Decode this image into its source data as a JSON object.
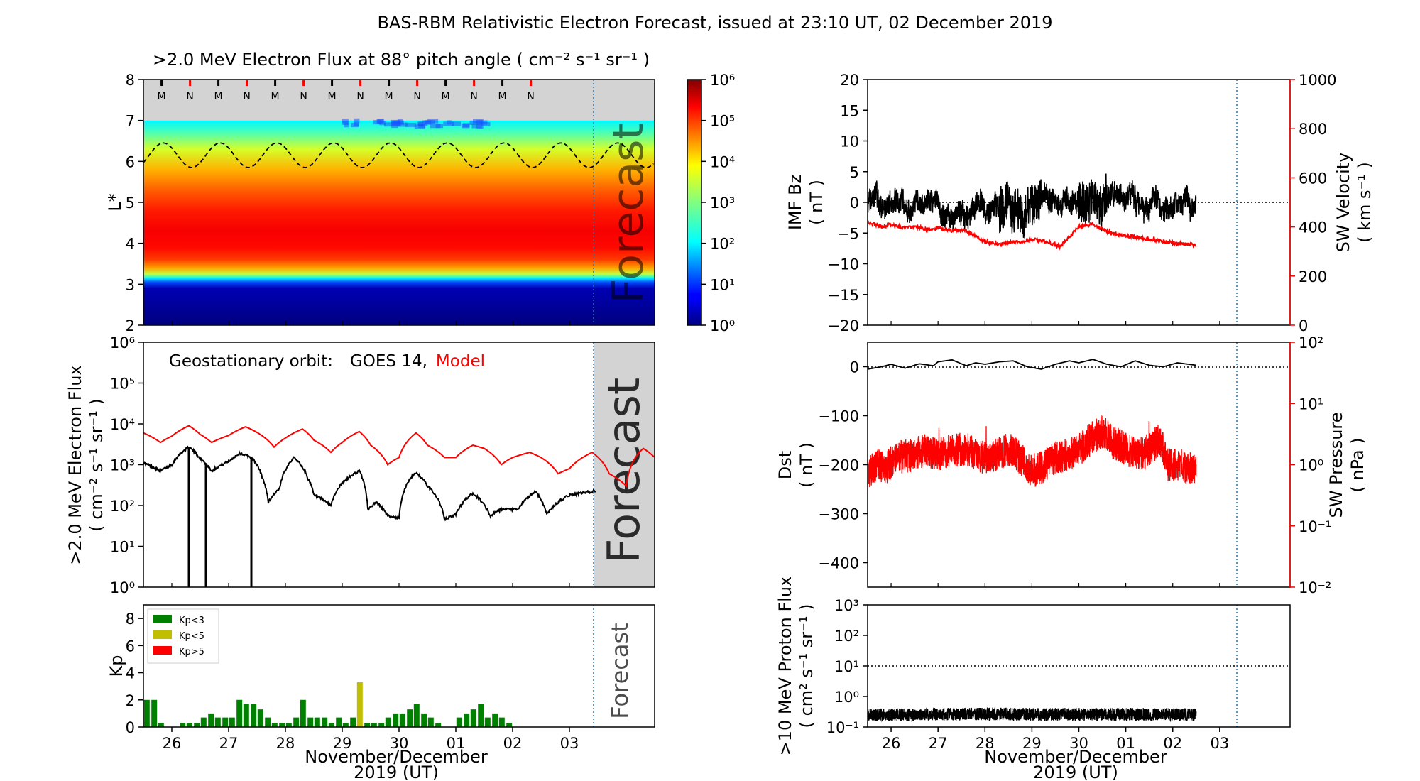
{
  "figure": {
    "title": "BAS-RBM Relativistic Electron Forecast, issued at 23:10 UT, 02 December 2019",
    "forecast_label": "Forecast",
    "xlabel_line1": "November/December",
    "xlabel_line2": "2019 (UT)"
  },
  "colors": {
    "black": "#000000",
    "red": "#ff0000",
    "green": "#008000",
    "olive": "#bfbf00",
    "forecast_line": "#1f77b4",
    "shade": "#d3d3d3"
  },
  "chart_data": [
    {
      "id": "lstar",
      "type": "heatmap",
      "title": ">2.0 MeV Electron Flux at 88° pitch angle ( cm⁻² s⁻¹ sr⁻¹ )",
      "ylabel": "L*",
      "ylim": [
        2,
        8
      ],
      "xlim": [
        25.5,
        34.5
      ],
      "yticks": [
        "2",
        "3",
        "4",
        "5",
        "6",
        "7",
        "8"
      ],
      "colorbar_ticks": [
        "10⁰",
        "10¹",
        "10²",
        "10³",
        "10⁴",
        "10⁵",
        "10⁶"
      ],
      "colorbar_range_log10": [
        0,
        6
      ],
      "forecast_start_day": 33.47,
      "mn_markers": {
        "labels": [
          "M",
          "N",
          "M",
          "N",
          "M",
          "N",
          "M",
          "N",
          "M",
          "N",
          "M",
          "N",
          "M",
          "N"
        ],
        "days": [
          25.82,
          26.32,
          26.82,
          27.32,
          27.82,
          28.32,
          28.82,
          29.32,
          29.82,
          30.32,
          30.82,
          31.32,
          31.82,
          32.32
        ]
      },
      "flux_profile_log10": {
        "L": [
          2.0,
          2.9,
          3.05,
          3.15,
          3.25,
          3.4,
          3.6,
          3.9,
          4.3,
          4.8,
          5.3,
          5.8,
          6.3,
          6.7,
          7.0
        ],
        "value": [
          0.0,
          0.3,
          1.2,
          2.2,
          3.4,
          4.3,
          4.9,
          5.2,
          5.3,
          5.1,
          4.7,
          4.2,
          3.5,
          2.7,
          2.2
        ]
      },
      "magnetopause_curve": {
        "mean_L": 6.15,
        "amplitude": 0.3,
        "period_days": 1
      }
    },
    {
      "id": "geo",
      "type": "line",
      "ylabel_line1": ">2.0 MeV Electron Flux",
      "ylabel_line2": "( cm⁻² s⁻¹ sr⁻¹ )",
      "legend_prefix": "Geostationary orbit:",
      "legend_goes": "GOES 14,",
      "legend_model": "Model",
      "yscale": "log",
      "ylim_log10": [
        0,
        6
      ],
      "yticks": [
        "10⁰",
        "10¹",
        "10²",
        "10³",
        "10⁴",
        "10⁵",
        "10⁶"
      ],
      "xlim": [
        25.5,
        34.5
      ],
      "series": [
        {
          "name": "GOES 14",
          "x": [
            25.5,
            25.8,
            26.0,
            26.3,
            26.5,
            26.7,
            27.0,
            27.2,
            27.4,
            27.6,
            27.7,
            27.9,
            28.15,
            28.4,
            28.5,
            28.8,
            29.0,
            29.3,
            29.45,
            29.6,
            29.8,
            30.0,
            30.3,
            30.5,
            30.8,
            31.0,
            31.3,
            31.6,
            31.8,
            32.1,
            32.4,
            32.6,
            33.0,
            33.5
          ],
          "y": [
            1100,
            700,
            1000,
            2700,
            1400,
            700,
            1200,
            1900,
            1500,
            450,
            120,
            260,
            1500,
            450,
            180,
            100,
            350,
            700,
            80,
            120,
            55,
            50,
            650,
            300,
            45,
            60,
            200,
            55,
            80,
            80,
            220,
            60,
            180,
            230
          ]
        },
        {
          "name": "Model",
          "x": [
            25.5,
            25.8,
            26.0,
            26.3,
            26.5,
            26.7,
            27.0,
            27.3,
            27.6,
            27.8,
            28.0,
            28.3,
            28.5,
            28.8,
            29.0,
            29.3,
            29.5,
            29.8,
            30.0,
            30.3,
            30.5,
            30.8,
            31.0,
            31.3,
            31.5,
            31.8,
            32.0,
            32.3,
            32.5,
            32.8,
            33.0,
            33.4,
            33.7,
            34.0,
            34.3,
            34.5
          ],
          "y": [
            6000,
            3500,
            5000,
            9000,
            5500,
            3500,
            5200,
            8500,
            5000,
            2700,
            4500,
            7500,
            4000,
            2000,
            3500,
            6500,
            3000,
            1000,
            1500,
            6000,
            3000,
            1500,
            1500,
            3000,
            2500,
            1000,
            1500,
            2000,
            1500,
            600,
            800,
            2000,
            600,
            300,
            2500,
            1500
          ]
        }
      ],
      "spikes": [
        26.3,
        26.6,
        27.4
      ]
    },
    {
      "id": "kp",
      "type": "bar",
      "ylabel": "Kp",
      "ylim": [
        0,
        9
      ],
      "yticks": [
        "0",
        "2",
        "4",
        "6",
        "8"
      ],
      "xlim": [
        25.5,
        34.5
      ],
      "xticks": [
        "26",
        "27",
        "28",
        "29",
        "30",
        "01",
        "02",
        "03"
      ],
      "legend": [
        {
          "label": "Kp<3",
          "color": "#008000"
        },
        {
          "label": "Kp<5",
          "color": "#bfbf00"
        },
        {
          "label": "Kp>5",
          "color": "#ff0000"
        }
      ],
      "bar_width_days": 0.1,
      "bars": [
        {
          "x": 25.56,
          "v": 2.0
        },
        {
          "x": 25.69,
          "v": 2.0
        },
        {
          "x": 25.81,
          "v": 0.3
        },
        {
          "x": 26.19,
          "v": 0.3
        },
        {
          "x": 26.31,
          "v": 0.3
        },
        {
          "x": 26.44,
          "v": 0.3
        },
        {
          "x": 26.56,
          "v": 0.7
        },
        {
          "x": 26.69,
          "v": 1.0
        },
        {
          "x": 26.81,
          "v": 0.7
        },
        {
          "x": 26.94,
          "v": 0.7
        },
        {
          "x": 27.06,
          "v": 0.7
        },
        {
          "x": 27.19,
          "v": 2.0
        },
        {
          "x": 27.31,
          "v": 1.7
        },
        {
          "x": 27.44,
          "v": 1.7
        },
        {
          "x": 27.56,
          "v": 1.3
        },
        {
          "x": 27.69,
          "v": 0.7
        },
        {
          "x": 27.81,
          "v": 0.3
        },
        {
          "x": 27.94,
          "v": 0.3
        },
        {
          "x": 28.06,
          "v": 0.3
        },
        {
          "x": 28.19,
          "v": 0.7
        },
        {
          "x": 28.31,
          "v": 2.0
        },
        {
          "x": 28.44,
          "v": 0.7
        },
        {
          "x": 28.56,
          "v": 0.7
        },
        {
          "x": 28.69,
          "v": 0.7
        },
        {
          "x": 28.81,
          "v": 0.3
        },
        {
          "x": 28.94,
          "v": 0.7
        },
        {
          "x": 29.06,
          "v": 0.3
        },
        {
          "x": 29.19,
          "v": 0.7
        },
        {
          "x": 29.31,
          "v": 3.3
        },
        {
          "x": 29.44,
          "v": 0.3
        },
        {
          "x": 29.56,
          "v": 0.3
        },
        {
          "x": 29.69,
          "v": 0.3
        },
        {
          "x": 29.81,
          "v": 0.7
        },
        {
          "x": 29.94,
          "v": 1.0
        },
        {
          "x": 30.06,
          "v": 1.0
        },
        {
          "x": 30.19,
          "v": 1.3
        },
        {
          "x": 30.31,
          "v": 1.7
        },
        {
          "x": 30.44,
          "v": 1.0
        },
        {
          "x": 30.56,
          "v": 0.7
        },
        {
          "x": 30.69,
          "v": 0.3
        },
        {
          "x": 31.06,
          "v": 0.7
        },
        {
          "x": 31.19,
          "v": 1.0
        },
        {
          "x": 31.31,
          "v": 1.3
        },
        {
          "x": 31.44,
          "v": 1.7
        },
        {
          "x": 31.56,
          "v": 0.7
        },
        {
          "x": 31.69,
          "v": 1.0
        },
        {
          "x": 31.81,
          "v": 0.7
        },
        {
          "x": 31.94,
          "v": 0.3
        }
      ]
    },
    {
      "id": "imf",
      "type": "line",
      "ylabel_line1": "IMF Bz",
      "ylabel_line2": "( nT )",
      "ylim": [
        -20,
        20
      ],
      "yticks": [
        "−20",
        "−15",
        "−10",
        "−5",
        "0",
        "5",
        "10",
        "15",
        "20"
      ],
      "y2label_line1": "SW Velocity",
      "y2label_line2": "( km s⁻¹ )",
      "y2lim": [
        0,
        1000
      ],
      "y2ticks": [
        "0",
        "200",
        "400",
        "600",
        "800",
        "1000"
      ],
      "xlim": [
        25.5,
        34.5
      ],
      "series": [
        {
          "name": "SW Velocity",
          "x": [
            25.5,
            25.8,
            26.0,
            26.3,
            26.5,
            26.8,
            27.0,
            27.3,
            27.6,
            27.8,
            28.0,
            28.3,
            28.5,
            28.8,
            29.0,
            29.2,
            29.4,
            29.6,
            29.8,
            30.0,
            30.3,
            30.6,
            30.9,
            31.2,
            31.5,
            31.8,
            32.0,
            32.3,
            32.5
          ],
          "y": [
            420,
            400,
            410,
            395,
            400,
            390,
            395,
            385,
            385,
            360,
            340,
            330,
            335,
            340,
            350,
            345,
            335,
            320,
            360,
            400,
            410,
            380,
            365,
            360,
            350,
            340,
            335,
            330,
            325
          ]
        }
      ]
    },
    {
      "id": "dst",
      "type": "line",
      "ylabel_line1": "Dst",
      "ylabel_line2": "( nT )",
      "ylim": [
        -450,
        50
      ],
      "yticks": [
        "−400",
        "−300",
        "−200",
        "−100",
        "0"
      ],
      "y2label_line1": "SW Pressure",
      "y2label_line2": "( nPa )",
      "y2scale": "log",
      "y2lim_log10": [
        -2,
        2
      ],
      "y2ticks": [
        "10⁻²",
        "10⁻¹",
        "10⁰",
        "10¹",
        "10²"
      ],
      "xlim": [
        25.5,
        34.5
      ],
      "series": [
        {
          "name": "Dst",
          "x": [
            25.5,
            25.8,
            26.0,
            26.3,
            26.6,
            26.9,
            27.0,
            27.3,
            27.6,
            27.8,
            28.0,
            28.3,
            28.6,
            28.9,
            29.2,
            29.5,
            29.8,
            30.0,
            30.3,
            30.6,
            30.9,
            31.2,
            31.5,
            31.8,
            32.1,
            32.5
          ],
          "y": [
            -5,
            0,
            5,
            -3,
            6,
            2,
            10,
            14,
            2,
            8,
            5,
            10,
            12,
            0,
            -5,
            5,
            12,
            8,
            15,
            5,
            0,
            12,
            3,
            0,
            8,
            3
          ]
        },
        {
          "name": "SW Pressure",
          "x": [
            25.5,
            25.7,
            25.9,
            26.1,
            26.4,
            26.7,
            27.0,
            27.3,
            27.6,
            27.8,
            28.0,
            28.3,
            28.5,
            28.7,
            28.9,
            29.1,
            29.3,
            29.5,
            29.7,
            29.9,
            30.1,
            30.3,
            30.5,
            30.7,
            30.9,
            31.1,
            31.3,
            31.5,
            31.7,
            31.9,
            32.1,
            32.3,
            32.5
          ],
          "y": [
            0.7,
            1.0,
            0.9,
            1.3,
            1.4,
            1.7,
            1.5,
            1.7,
            1.8,
            1.5,
            1.3,
            1.5,
            1.8,
            1.4,
            0.9,
            0.8,
            1.0,
            1.3,
            1.4,
            1.6,
            2.0,
            2.8,
            3.5,
            2.4,
            2.0,
            1.6,
            1.5,
            1.7,
            2.5,
            1.0,
            1.0,
            0.9,
            0.8
          ]
        }
      ]
    },
    {
      "id": "proton",
      "type": "line",
      "ylabel_line1": ">10 MeV Proton Flux",
      "ylabel_line2": "( cm² s⁻¹ sr⁻¹ )",
      "yscale": "log",
      "ylim_log10": [
        -1,
        3
      ],
      "yticks": [
        "10⁻¹",
        "10⁰",
        "10¹",
        "10²",
        "10³"
      ],
      "xlim": [
        25.5,
        34.5
      ],
      "xticks": [
        "26",
        "27",
        "28",
        "29",
        "30",
        "01",
        "02",
        "03"
      ],
      "threshold": 10,
      "series": [
        {
          "name": "Proton Flux",
          "x": [
            25.5,
            26.0,
            27.0,
            28.0,
            29.0,
            30.0,
            31.0,
            32.0,
            32.5
          ],
          "y": [
            0.25,
            0.25,
            0.26,
            0.27,
            0.26,
            0.26,
            0.26,
            0.26,
            0.25
          ]
        }
      ]
    }
  ]
}
